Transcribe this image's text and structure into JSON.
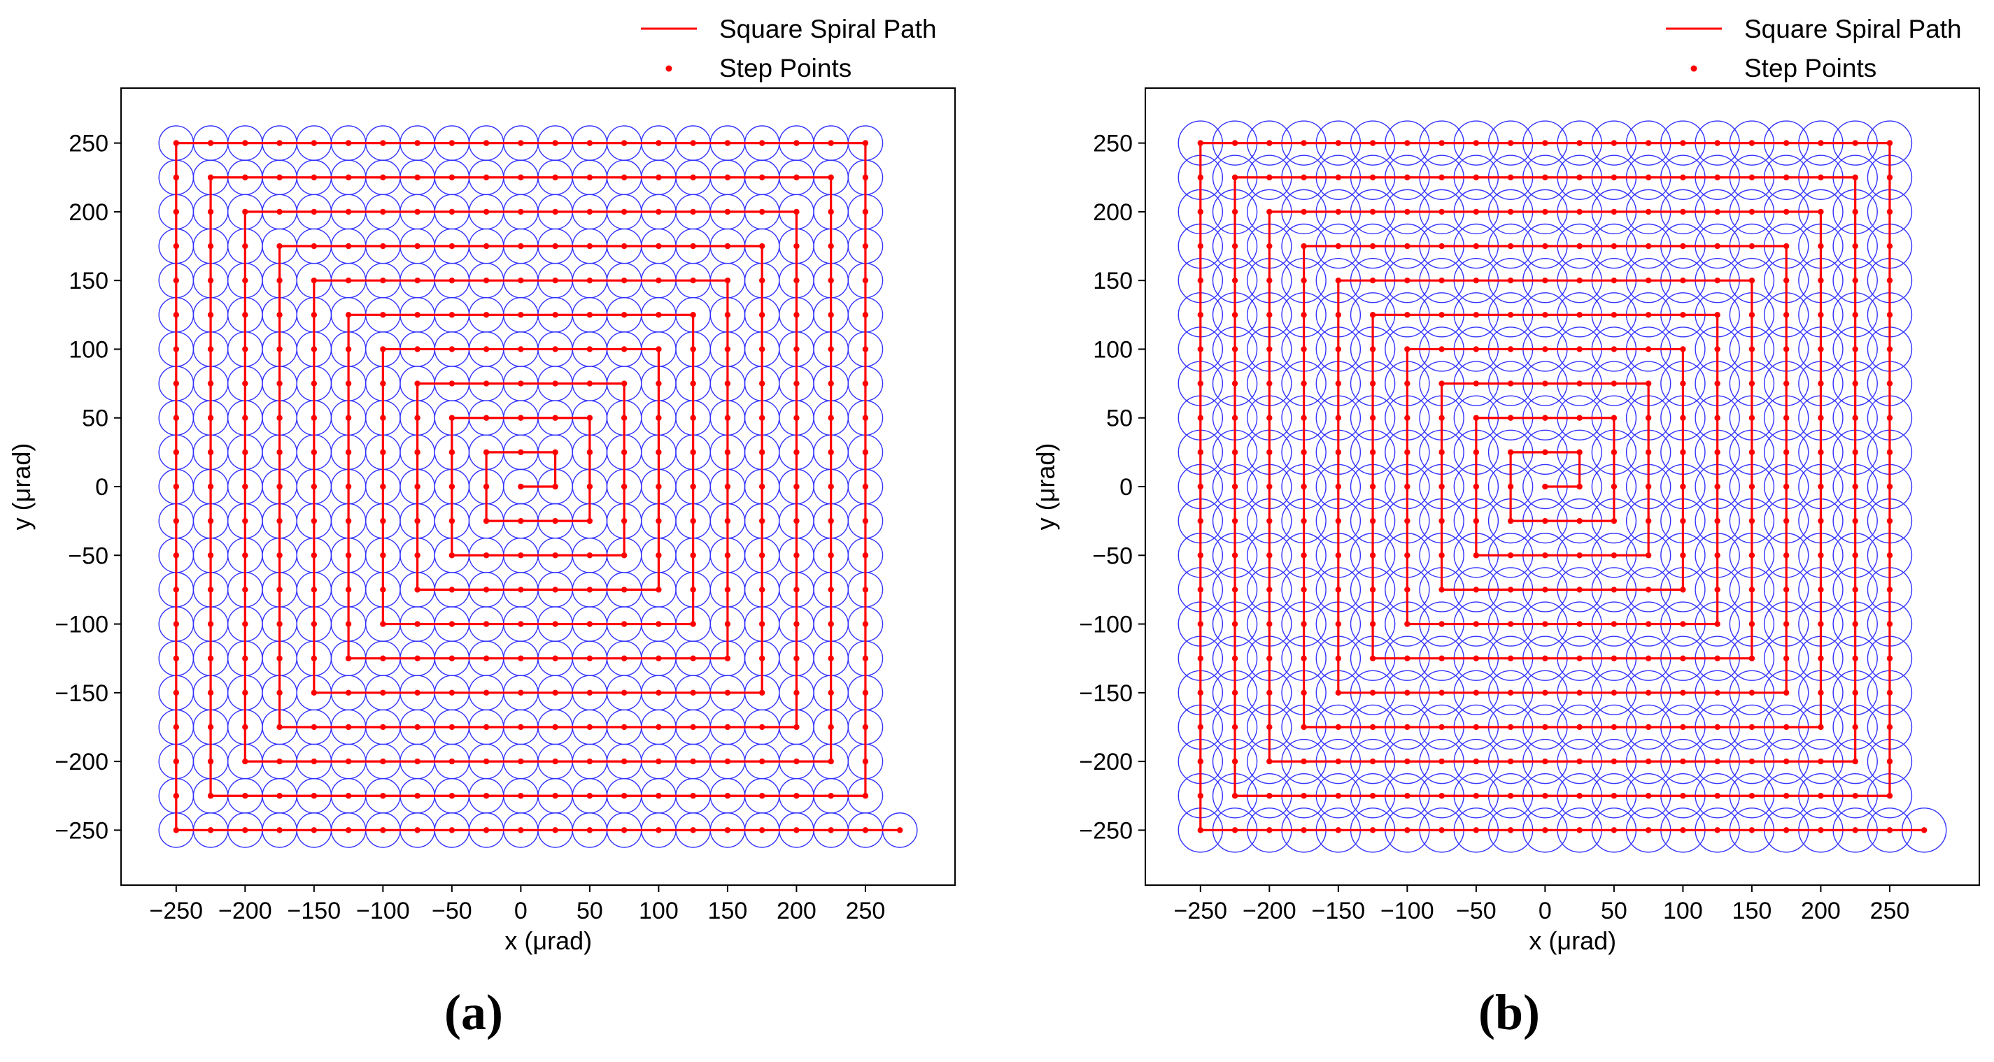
{
  "figure": {
    "panels": [
      "(a)",
      "(b)"
    ]
  },
  "chart_data": [
    {
      "panel": "(a)",
      "type": "line",
      "xlabel": "x (μrad)",
      "ylabel": "y (μrad)",
      "xlim": [
        -290,
        315
      ],
      "ylim": [
        -290,
        290
      ],
      "xticks": [
        -250,
        -200,
        -150,
        -100,
        -50,
        0,
        50,
        100,
        150,
        200,
        250
      ],
      "yticks": [
        -250,
        -200,
        -150,
        -100,
        -50,
        0,
        50,
        100,
        150,
        200,
        250
      ],
      "legend": [
        "Square Spiral Path",
        "Step Points"
      ],
      "legend_position": "above-top-right",
      "spiral": {
        "start": [
          0,
          0
        ],
        "step": 25,
        "first_direction": "right",
        "turn": "counterclockwise",
        "extent": 250,
        "end": [
          275,
          -250
        ]
      },
      "beam_circle_radius": 12.5,
      "colors": {
        "path": "#ff0000",
        "points": "#ff0000",
        "circles": "#3333ff"
      }
    },
    {
      "panel": "(b)",
      "type": "line",
      "xlabel": "x (μrad)",
      "ylabel": "y (μrad)",
      "xlim": [
        -290,
        315
      ],
      "ylim": [
        -290,
        290
      ],
      "xticks": [
        -250,
        -200,
        -150,
        -100,
        -50,
        0,
        50,
        100,
        150,
        200,
        250
      ],
      "yticks": [
        -250,
        -200,
        -150,
        -100,
        -50,
        0,
        50,
        100,
        150,
        200,
        250
      ],
      "legend": [
        "Square Spiral Path",
        "Step Points"
      ],
      "legend_position": "above-top-right",
      "spiral": {
        "start": [
          0,
          0
        ],
        "step": 25,
        "first_direction": "right",
        "turn": "counterclockwise",
        "extent": 250,
        "end": [
          275,
          -250
        ]
      },
      "beam_circle_radius": 16,
      "colors": {
        "path": "#ff0000",
        "points": "#ff0000",
        "circles": "#3333ff"
      }
    }
  ]
}
